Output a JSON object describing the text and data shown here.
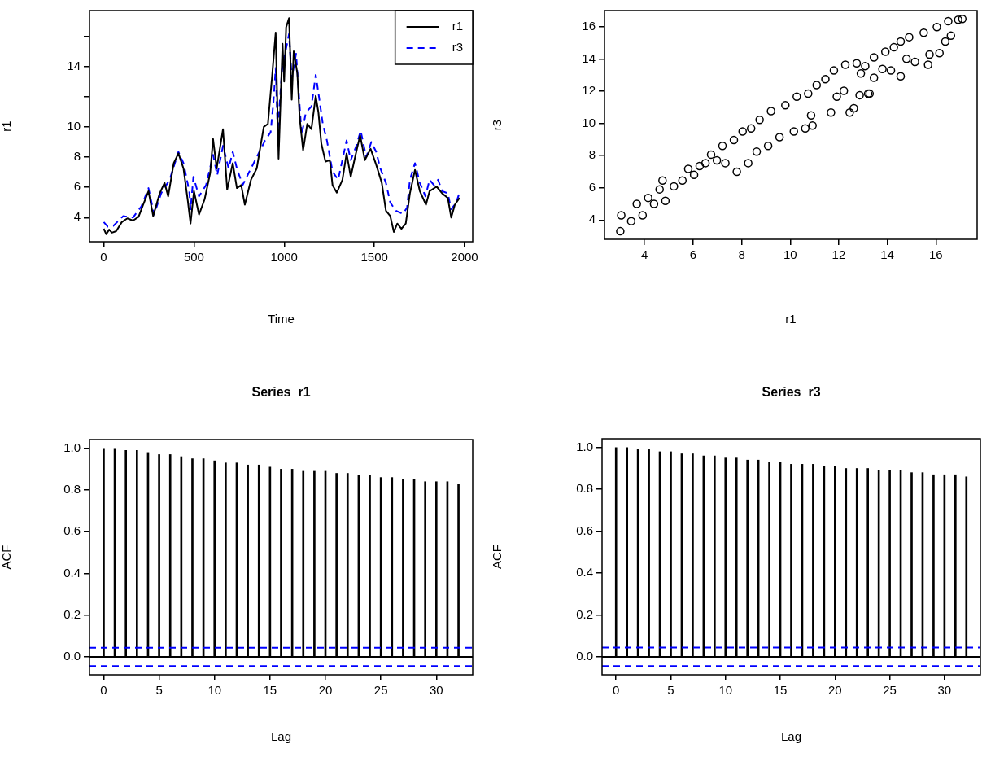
{
  "chart_data": [
    {
      "type": "line",
      "xlabel": "Time",
      "ylabel": "r1",
      "xlim": [
        -79,
        2045
      ],
      "ylim": [
        2.4,
        17.7
      ],
      "xticks": [
        0,
        500,
        1000,
        1500,
        2000
      ],
      "yticks": [
        4,
        6,
        8,
        10,
        {
          "value": 12,
          "label": null
        },
        14,
        {
          "value": 16,
          "label": null
        }
      ],
      "legend": "top right",
      "marker": "none",
      "series": [
        {
          "name": "r1",
          "color": "#000000",
          "line_style": "solid",
          "x": [
            0,
            14,
            30,
            45,
            69,
            100,
            131,
            162,
            193,
            217,
            248,
            274,
            310,
            337,
            357,
            388,
            414,
            442,
            466,
            481,
            500,
            528,
            559,
            590,
            606,
            626,
            661,
            684,
            715,
            738,
            762,
            782,
            816,
            848,
            887,
            910,
            933,
            953,
            969,
            991,
            1000,
            1011,
            1027,
            1042,
            1053,
            1073,
            1086,
            1105,
            1128,
            1151,
            1175,
            1190,
            1206,
            1229,
            1253,
            1268,
            1292,
            1323,
            1346,
            1369,
            1393,
            1421,
            1447,
            1479,
            1510,
            1541,
            1564,
            1588,
            1608,
            1627,
            1650,
            1674,
            1697,
            1725,
            1752,
            1786,
            1806,
            1845,
            1876,
            1907,
            1926,
            1946,
            1972
          ],
          "values": [
            3.26,
            2.9,
            3.2,
            3.0,
            3.1,
            3.7,
            3.95,
            3.8,
            4.05,
            4.8,
            5.75,
            4.1,
            5.6,
            6.3,
            5.4,
            7.6,
            8.25,
            7.25,
            5.1,
            3.6,
            5.75,
            4.2,
            5.2,
            6.95,
            9.2,
            7.25,
            9.85,
            5.85,
            7.6,
            5.95,
            6.15,
            4.85,
            6.5,
            7.25,
            10.0,
            10.2,
            13.35,
            16.25,
            7.9,
            15.5,
            13.0,
            16.6,
            17.2,
            11.8,
            15.0,
            13.55,
            10.6,
            8.45,
            10.2,
            9.85,
            12.05,
            10.95,
            8.9,
            7.7,
            7.8,
            6.15,
            5.65,
            6.5,
            8.25,
            6.7,
            8.0,
            9.45,
            7.8,
            8.55,
            7.5,
            6.3,
            4.45,
            4.1,
            3.05,
            3.6,
            3.25,
            3.6,
            5.6,
            7.15,
            5.75,
            4.85,
            5.75,
            6.05,
            5.6,
            5.3,
            4.0,
            4.85,
            5.3
          ]
        },
        {
          "name": "r3",
          "color": "#0000ff",
          "line_style": "dashed",
          "x": [
            0,
            22,
            53,
            108,
            162,
            209,
            248,
            279,
            318,
            365,
            414,
            442,
            474,
            481,
            497,
            528,
            567,
            606,
            629,
            661,
            692,
            715,
            738,
            770,
            801,
            848,
            894,
            925,
            941,
            953,
            964,
            988,
            1011,
            1027,
            1042,
            1066,
            1081,
            1097,
            1120,
            1151,
            1175,
            1190,
            1214,
            1237,
            1268,
            1299,
            1346,
            1369,
            1400,
            1424,
            1455,
            1483,
            1510,
            1533,
            1564,
            1588,
            1619,
            1658,
            1681,
            1697,
            1725,
            1752,
            1783,
            1806,
            1830,
            1853,
            1876,
            1907,
            1926,
            1954,
            1972
          ],
          "values": [
            3.7,
            3.4,
            3.45,
            4.1,
            4.0,
            4.75,
            5.95,
            4.2,
            5.6,
            6.5,
            8.35,
            7.6,
            5.75,
            4.55,
            6.7,
            5.4,
            6.15,
            8.15,
            6.8,
            8.75,
            7.25,
            8.35,
            7.25,
            6.15,
            6.9,
            8.0,
            9.1,
            9.65,
            11.7,
            13.9,
            9.65,
            13.75,
            15.2,
            16.15,
            13.2,
            14.85,
            12.25,
            9.45,
            10.95,
            11.35,
            13.45,
            12.25,
            10.2,
            9.1,
            7.05,
            6.5,
            9.1,
            7.8,
            8.75,
            9.75,
            8.0,
            9.0,
            8.35,
            7.25,
            6.3,
            5.0,
            4.45,
            4.25,
            4.65,
            6.5,
            7.6,
            6.3,
            5.4,
            6.5,
            6.15,
            6.5,
            5.75,
            5.6,
            4.55,
            5.0,
            5.65
          ]
        }
      ]
    },
    {
      "type": "scatter",
      "xlabel": "r1",
      "ylabel": "r3",
      "xlim": [
        2.35,
        17.7
      ],
      "ylim": [
        2.8,
        17.0
      ],
      "xticks": [
        4,
        6,
        8,
        10,
        12,
        14,
        16
      ],
      "yticks": [
        4,
        6,
        8,
        10,
        12,
        14,
        16
      ],
      "marker": "circle",
      "series": [
        {
          "color": "#000000",
          "x": [
            3.0,
            3.04,
            3.45,
            3.68,
            3.92,
            4.15,
            4.39,
            4.62,
            4.74,
            4.86,
            5.21,
            5.56,
            5.8,
            6.04,
            6.27,
            6.51,
            6.74,
            6.98,
            7.21,
            7.33,
            7.68,
            7.8,
            8.04,
            8.27,
            8.39,
            8.62,
            8.74,
            9.09,
            9.21,
            9.56,
            9.8,
            10.15,
            10.27,
            10.62,
            10.92,
            10.74,
            11.09,
            10.86,
            11.45,
            11.8,
            11.68,
            11.92,
            12.27,
            12.45,
            12.62,
            12.21,
            12.86,
            12.74,
            13.21,
            13.27,
            13.09,
            12.91,
            13.45,
            13.45,
            13.92,
            13.8,
            14.27,
            14.15,
            14.55,
            14.55,
            14.9,
            14.79,
            15.14,
            15.5,
            15.68,
            15.74,
            16.15,
            16.04,
            16.39,
            16.51,
            16.62,
            16.92,
            17.09
          ],
          "values": [
            3.3,
            4.29,
            3.93,
            5.0,
            4.29,
            5.37,
            5.0,
            5.9,
            6.45,
            5.19,
            6.09,
            6.45,
            7.17,
            6.8,
            7.35,
            7.53,
            8.06,
            7.7,
            8.6,
            7.53,
            8.96,
            6.99,
            9.5,
            7.53,
            9.68,
            8.24,
            10.22,
            8.6,
            10.76,
            9.14,
            11.12,
            9.5,
            11.66,
            9.68,
            9.86,
            11.84,
            12.38,
            10.49,
            12.74,
            13.28,
            10.67,
            11.66,
            13.64,
            10.67,
            10.94,
            12.02,
            11.75,
            13.73,
            11.84,
            11.84,
            13.55,
            13.1,
            14.09,
            12.83,
            14.45,
            13.37,
            14.72,
            13.28,
            12.92,
            15.08,
            15.35,
            14.0,
            13.82,
            15.62,
            13.64,
            14.27,
            14.36,
            15.98,
            15.08,
            16.34,
            15.44,
            16.43,
            16.48
          ]
        }
      ]
    },
    {
      "type": "bar",
      "title": "Series  r1",
      "xlabel": "Lag",
      "ylabel": "ACF",
      "xlim": [
        -1.28,
        33.28
      ],
      "ylim": [
        -0.086,
        1.042
      ],
      "xticks": [
        0,
        5,
        10,
        15,
        20,
        25,
        30
      ],
      "yticks": [
        {
          "value": 0,
          "label": "0.0"
        },
        0.2,
        0.4,
        0.6,
        0.8,
        {
          "value": 1,
          "label": "1.0"
        }
      ],
      "x": [
        0,
        1,
        2,
        3,
        4,
        5,
        6,
        7,
        8,
        9,
        10,
        11,
        12,
        13,
        14,
        15,
        16,
        17,
        18,
        19,
        20,
        21,
        22,
        23,
        24,
        25,
        26,
        27,
        28,
        29,
        30,
        31,
        32
      ],
      "series": [
        {
          "color": "#000000",
          "values": [
            1.0,
            1.0,
            0.99,
            0.99,
            0.98,
            0.97,
            0.97,
            0.96,
            0.95,
            0.95,
            0.94,
            0.93,
            0.93,
            0.92,
            0.92,
            0.91,
            0.9,
            0.9,
            0.89,
            0.89,
            0.89,
            0.88,
            0.88,
            0.87,
            0.87,
            0.86,
            0.86,
            0.85,
            0.85,
            0.84,
            0.84,
            0.84,
            0.83
          ]
        }
      ],
      "ref_lines": [
        {
          "axis": "y",
          "value": 0,
          "color": "#000000",
          "line_style": "solid"
        },
        {
          "axis": "y",
          "value": 0.044,
          "color": "#0000ff",
          "line_style": "dashed"
        },
        {
          "axis": "y",
          "value": -0.044,
          "color": "#0000ff",
          "line_style": "dashed"
        }
      ]
    },
    {
      "type": "bar",
      "title": "Series  r3",
      "xlabel": "Lag",
      "ylabel": "ACF",
      "xlim": [
        -1.28,
        33.28
      ],
      "ylim": [
        -0.086,
        1.042
      ],
      "xticks": [
        0,
        5,
        10,
        15,
        20,
        25,
        30
      ],
      "yticks": [
        {
          "value": 0,
          "label": "0.0"
        },
        0.2,
        0.4,
        0.6,
        0.8,
        {
          "value": 1,
          "label": "1.0"
        }
      ],
      "x": [
        0,
        1,
        2,
        3,
        4,
        5,
        6,
        7,
        8,
        9,
        10,
        11,
        12,
        13,
        14,
        15,
        16,
        17,
        18,
        19,
        20,
        21,
        22,
        23,
        24,
        25,
        26,
        27,
        28,
        29,
        30,
        31,
        32
      ],
      "series": [
        {
          "color": "#000000",
          "values": [
            1.0,
            1.0,
            0.99,
            0.99,
            0.98,
            0.98,
            0.97,
            0.97,
            0.96,
            0.96,
            0.95,
            0.95,
            0.94,
            0.94,
            0.93,
            0.93,
            0.92,
            0.92,
            0.92,
            0.91,
            0.91,
            0.9,
            0.9,
            0.9,
            0.89,
            0.89,
            0.89,
            0.88,
            0.88,
            0.87,
            0.87,
            0.87,
            0.86
          ]
        }
      ],
      "ref_lines": [
        {
          "axis": "y",
          "value": 0,
          "color": "#000000",
          "line_style": "solid"
        },
        {
          "axis": "y",
          "value": 0.044,
          "color": "#0000ff",
          "line_style": "dashed"
        },
        {
          "axis": "y",
          "value": -0.044,
          "color": "#0000ff",
          "line_style": "dashed"
        }
      ]
    }
  ]
}
